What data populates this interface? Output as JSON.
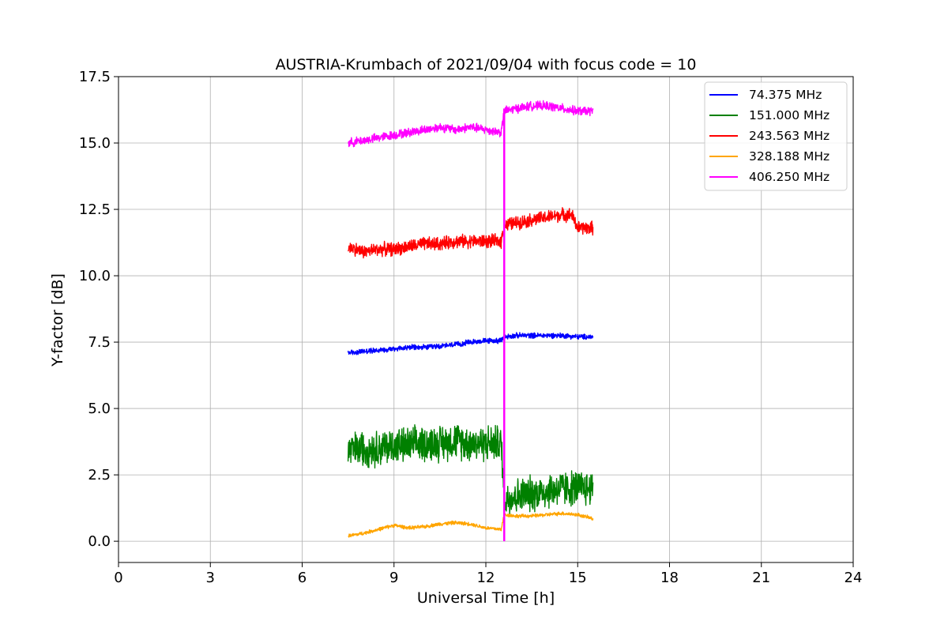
{
  "chart_data": {
    "type": "line",
    "title": "AUSTRIA-Krumbach of 2021/09/04 with focus code = 10",
    "xlabel": "Universal Time [h]",
    "ylabel": "Y-factor [dB]",
    "xlim": [
      0,
      24
    ],
    "ylim": [
      -0.8,
      17.5
    ],
    "xticks": [
      0,
      3,
      6,
      9,
      12,
      15,
      18,
      21,
      24
    ],
    "xtick_labels": [
      "0",
      "3",
      "6",
      "9",
      "12",
      "15",
      "18",
      "21",
      "24"
    ],
    "yticks": [
      0,
      2.5,
      5,
      7.5,
      10,
      12.5,
      15,
      17.5
    ],
    "ytick_labels": [
      "0.0",
      "2.5",
      "5.0",
      "7.5",
      "10.0",
      "12.5",
      "15.0",
      "17.5"
    ],
    "grid": true,
    "legend_position": "top-right",
    "event_marker": {
      "x": 12.6,
      "y_range": [
        0,
        16.3
      ],
      "color": "#ff00ff"
    },
    "series": [
      {
        "name": "  74.375 MHz",
        "color": "#0000ff",
        "noise": 0.12,
        "x": [
          7.5,
          8.0,
          8.5,
          9.0,
          9.5,
          10.0,
          10.5,
          11.0,
          11.5,
          12.0,
          12.5,
          12.6,
          13.0,
          13.5,
          14.0,
          14.5,
          15.0,
          15.5
        ],
        "y": [
          7.1,
          7.15,
          7.2,
          7.25,
          7.3,
          7.3,
          7.35,
          7.4,
          7.5,
          7.55,
          7.55,
          7.7,
          7.75,
          7.75,
          7.75,
          7.75,
          7.7,
          7.7
        ]
      },
      {
        "name": "151.000 MHz",
        "color": "#008000",
        "noise": 0.8,
        "x": [
          7.5,
          8.0,
          8.5,
          9.0,
          9.5,
          10.0,
          10.5,
          11.0,
          11.5,
          12.0,
          12.5,
          12.6,
          13.0,
          13.5,
          14.0,
          14.5,
          15.0,
          15.5
        ],
        "y": [
          3.4,
          3.5,
          3.5,
          3.6,
          3.6,
          3.7,
          3.7,
          3.8,
          3.7,
          3.7,
          3.7,
          1.6,
          1.7,
          1.8,
          1.9,
          2.0,
          2.0,
          2.0
        ]
      },
      {
        "name": "243.563 MHz",
        "color": "#ff0000",
        "noise": 0.3,
        "x": [
          7.5,
          8.0,
          8.5,
          9.0,
          9.5,
          10.0,
          10.5,
          11.0,
          11.5,
          12.0,
          12.5,
          12.6,
          13.0,
          13.5,
          14.0,
          14.5,
          14.8,
          15.0,
          15.5
        ],
        "y": [
          11.1,
          10.9,
          11.0,
          11.0,
          11.1,
          11.2,
          11.2,
          11.3,
          11.3,
          11.3,
          11.3,
          11.9,
          12.0,
          12.1,
          12.2,
          12.3,
          12.3,
          11.8,
          11.8
        ]
      },
      {
        "name": "328.188 MHz",
        "color": "#ffa500",
        "noise": 0.08,
        "x": [
          7.5,
          8.0,
          8.5,
          9.0,
          9.5,
          10.0,
          10.5,
          11.0,
          11.5,
          12.0,
          12.5,
          12.6,
          13.0,
          13.5,
          14.0,
          14.5,
          15.0,
          15.5
        ],
        "y": [
          0.2,
          0.3,
          0.45,
          0.6,
          0.5,
          0.55,
          0.65,
          0.7,
          0.65,
          0.5,
          0.45,
          1.0,
          0.95,
          0.95,
          1.0,
          1.05,
          1.0,
          0.85
        ]
      },
      {
        "name": "406.250 MHz",
        "color": "#ff00ff",
        "noise": 0.2,
        "x": [
          7.5,
          8.0,
          8.5,
          9.0,
          9.5,
          10.0,
          10.5,
          11.0,
          11.5,
          12.0,
          12.5,
          12.6,
          13.0,
          13.5,
          14.0,
          14.5,
          15.0,
          15.5
        ],
        "y": [
          15.0,
          15.1,
          15.2,
          15.3,
          15.4,
          15.5,
          15.6,
          15.5,
          15.6,
          15.5,
          15.4,
          16.2,
          16.3,
          16.4,
          16.4,
          16.3,
          16.2,
          16.2
        ]
      }
    ]
  }
}
